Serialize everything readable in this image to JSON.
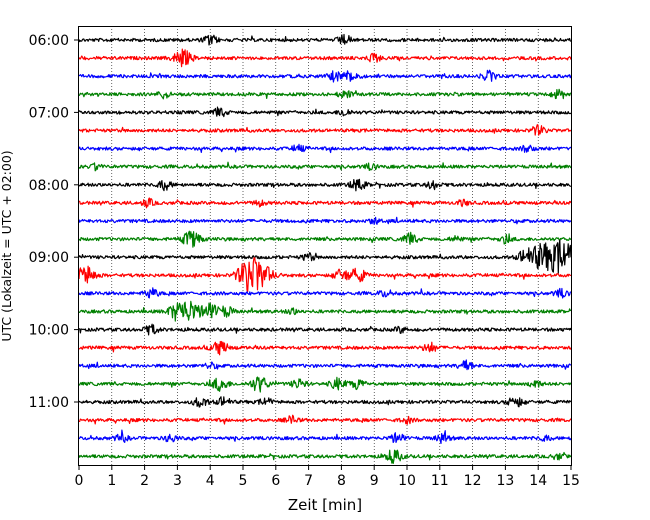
{
  "chart_data": {
    "type": "line",
    "title": "",
    "xlabel": "Zeit  [min]",
    "ylabel": "UTC (Lokalzeit = UTC + 02:00)",
    "xlim": [
      0,
      15
    ],
    "x_ticks": [
      "0",
      "1",
      "2",
      "3",
      "4",
      "5",
      "6",
      "7",
      "8",
      "9",
      "10",
      "11",
      "12",
      "13",
      "14",
      "15"
    ],
    "y_ticks": [
      {
        "label": "06:00",
        "row": 0
      },
      {
        "label": "07:00",
        "row": 4
      },
      {
        "label": "08:00",
        "row": 8
      },
      {
        "label": "09:00",
        "row": 12
      },
      {
        "label": "10:00",
        "row": 16
      },
      {
        "label": "11:00",
        "row": 20
      }
    ],
    "grid": "vertical dotted lines at each minute",
    "row_interval_minutes": 15,
    "trace_colors": [
      "#000000",
      "#ff0000",
      "#0000ff",
      "#008000"
    ],
    "series": [
      {
        "row": 0,
        "start": "06:00",
        "bursts": [
          [
            4.0,
            0.5
          ],
          [
            8.1,
            0.5
          ]
        ]
      },
      {
        "row": 1,
        "start": "06:15",
        "bursts": [
          [
            3.15,
            0.9
          ],
          [
            9.0,
            0.4
          ]
        ]
      },
      {
        "row": 2,
        "start": "06:30",
        "bursts": [
          [
            7.8,
            0.5
          ],
          [
            8.3,
            0.6
          ],
          [
            12.5,
            0.5
          ]
        ]
      },
      {
        "row": 3,
        "start": "06:45",
        "bursts": [
          [
            2.6,
            0.4
          ],
          [
            8.1,
            0.4
          ],
          [
            14.6,
            0.4
          ]
        ]
      },
      {
        "row": 4,
        "start": "07:00",
        "bursts": [
          [
            4.3,
            0.5
          ],
          [
            8.1,
            0.4
          ]
        ]
      },
      {
        "row": 5,
        "start": "07:15",
        "bursts": [
          [
            14.0,
            0.5
          ]
        ]
      },
      {
        "row": 6,
        "start": "07:30",
        "bursts": [
          [
            6.7,
            0.4
          ],
          [
            13.7,
            0.4
          ]
        ]
      },
      {
        "row": 7,
        "start": "07:45",
        "bursts": [
          [
            0.5,
            0.3
          ],
          [
            8.9,
            0.3
          ]
        ]
      },
      {
        "row": 8,
        "start": "08:00",
        "bursts": [
          [
            2.6,
            0.5
          ],
          [
            8.5,
            0.6
          ],
          [
            10.8,
            0.4
          ]
        ]
      },
      {
        "row": 9,
        "start": "08:15",
        "bursts": [
          [
            2.1,
            0.4
          ],
          [
            5.5,
            0.3
          ],
          [
            11.7,
            0.3
          ]
        ]
      },
      {
        "row": 10,
        "start": "08:30",
        "bursts": [
          [
            9.0,
            0.3
          ]
        ]
      },
      {
        "row": 11,
        "start": "08:45",
        "bursts": [
          [
            3.45,
            0.9
          ],
          [
            10.1,
            0.6
          ],
          [
            11.5,
            0.3
          ],
          [
            13.0,
            0.4
          ]
        ]
      },
      {
        "row": 12,
        "start": "09:00",
        "bursts": [
          [
            7.0,
            0.4
          ],
          [
            13.6,
            0.7
          ],
          [
            14.1,
            1.3
          ],
          [
            14.6,
            1.2
          ],
          [
            14.9,
            1.0
          ]
        ]
      },
      {
        "row": 13,
        "start": "09:15",
        "bursts": [
          [
            0.2,
            1.0
          ],
          [
            5.1,
            1.0
          ],
          [
            5.45,
            1.6
          ],
          [
            8.0,
            0.6
          ],
          [
            8.5,
            0.7
          ]
        ]
      },
      {
        "row": 14,
        "start": "09:30",
        "bursts": [
          [
            2.2,
            0.5
          ],
          [
            9.3,
            0.3
          ],
          [
            14.7,
            0.4
          ]
        ]
      },
      {
        "row": 15,
        "start": "09:45",
        "bursts": [
          [
            3.0,
            0.9
          ],
          [
            3.4,
            1.0
          ],
          [
            4.0,
            0.8
          ],
          [
            4.5,
            0.5
          ],
          [
            6.5,
            0.3
          ]
        ]
      },
      {
        "row": 16,
        "start": "10:00",
        "bursts": [
          [
            2.2,
            0.5
          ],
          [
            9.8,
            0.3
          ]
        ]
      },
      {
        "row": 17,
        "start": "10:15",
        "bursts": [
          [
            4.3,
            0.7
          ],
          [
            10.7,
            0.5
          ]
        ]
      },
      {
        "row": 18,
        "start": "10:30",
        "bursts": [
          [
            11.8,
            0.5
          ],
          [
            4.0,
            0.3
          ]
        ]
      },
      {
        "row": 19,
        "start": "10:45",
        "bursts": [
          [
            4.3,
            0.7
          ],
          [
            5.5,
            0.8
          ],
          [
            6.7,
            0.5
          ],
          [
            7.9,
            0.6
          ],
          [
            8.5,
            0.5
          ],
          [
            13.9,
            0.4
          ]
        ]
      },
      {
        "row": 20,
        "start": "11:00",
        "bursts": [
          [
            3.7,
            0.5
          ],
          [
            4.4,
            0.5
          ],
          [
            5.7,
            0.4
          ],
          [
            13.3,
            0.6
          ]
        ]
      },
      {
        "row": 21,
        "start": "11:15",
        "bursts": [
          [
            6.5,
            0.4
          ],
          [
            10.0,
            0.3
          ]
        ]
      },
      {
        "row": 22,
        "start": "11:30",
        "bursts": [
          [
            1.3,
            0.4
          ],
          [
            2.8,
            0.4
          ],
          [
            9.7,
            0.5
          ],
          [
            11.1,
            0.5
          ],
          [
            14.2,
            0.3
          ]
        ]
      },
      {
        "row": 23,
        "start": "11:45",
        "bursts": [
          [
            9.6,
            0.7
          ],
          [
            14.6,
            0.3
          ]
        ]
      }
    ]
  }
}
